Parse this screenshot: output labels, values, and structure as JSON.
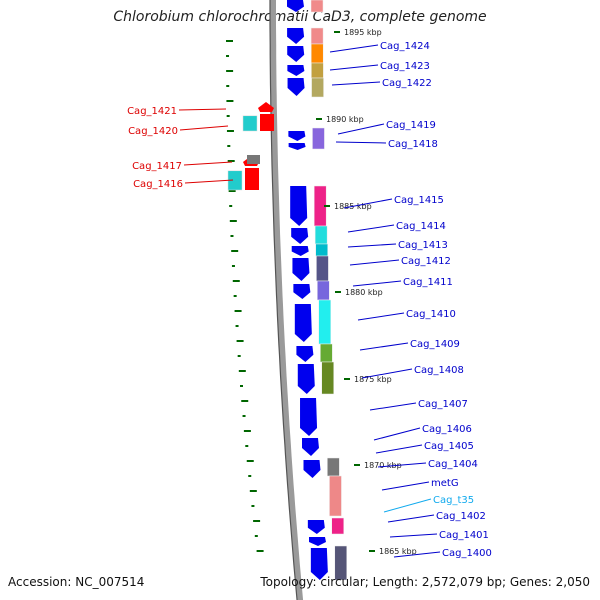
{
  "title": "Chlorobium chlorochromatii CaD3, complete genome",
  "accession": "Accession: NC_007514",
  "summary": "Topology: circular; Length: 2,572,079 bp; Genes: 2,050",
  "ticks": [
    "1895 kbp",
    "1890 kbp",
    "1885 kbp",
    "1880 kbp",
    "1875 kbp",
    "1870 kbp",
    "1865 kbp"
  ],
  "labels_right": [
    "Cag_1424",
    "Cag_1423",
    "Cag_1422",
    "Cag_1419",
    "Cag_1418",
    "Cag_1415",
    "Cag_1414",
    "Cag_1413",
    "Cag_1412",
    "Cag_1411",
    "Cag_1410",
    "Cag_1409",
    "Cag_1408",
    "Cag_1407",
    "Cag_1406",
    "Cag_1405",
    "Cag_1404",
    "metG",
    "Cag_t35",
    "Cag_1402",
    "Cag_1401",
    "Cag_1400"
  ],
  "labels_left": [
    "Cag_1421",
    "Cag_1420",
    "Cag_1417",
    "Cag_1416"
  ],
  "colors": {
    "forward_label": "#0000cc",
    "reverse_label": "#dd0000",
    "trna_label": "#11aaee",
    "cds_forward": "#0000ee",
    "cds_reverse": "#ff0000",
    "tick": "#006600",
    "backbone": "#8a8a8a"
  }
}
